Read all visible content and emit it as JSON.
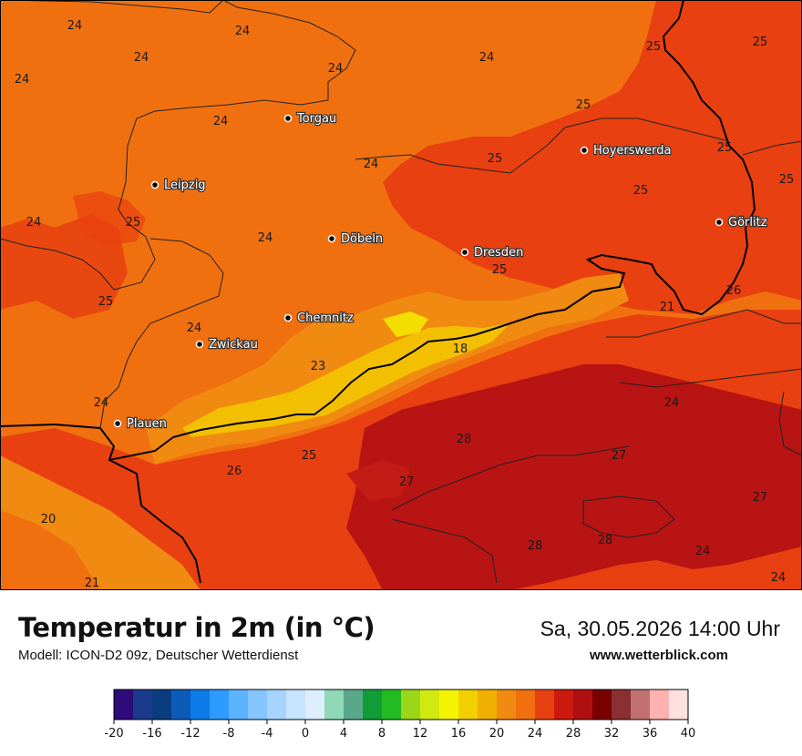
{
  "map": {
    "cities": [
      {
        "name": "Torgau"
      },
      {
        "name": "Leipzig"
      },
      {
        "name": "Döbeln"
      },
      {
        "name": "Dresden"
      },
      {
        "name": "Hoyerswerda"
      },
      {
        "name": "Görlitz"
      },
      {
        "name": "Chemnitz"
      },
      {
        "name": "Zwickau"
      },
      {
        "name": "Plauen"
      }
    ],
    "temperature_labels": [
      "24",
      "24",
      "24",
      "24",
      "24",
      "24",
      "25",
      "25",
      "24",
      "25",
      "24",
      "25",
      "25",
      "24",
      "25",
      "25",
      "25",
      "25",
      "24",
      "25",
      "26",
      "21",
      "24",
      "24",
      "18",
      "23",
      "24",
      "28",
      "27",
      "25",
      "26",
      "27",
      "27",
      "20",
      "28",
      "28",
      "24",
      "21",
      "24"
    ]
  },
  "footer": {
    "title": "Temperatur in 2m (in °C)",
    "subtitle": "Modell: ICON-D2 09z, Deutscher Wetterdienst",
    "datetime": "Sa, 30.05.2026 14:00 Uhr",
    "website": "www.wetterblick.com"
  },
  "legend": {
    "ticks": [
      "-20",
      "-16",
      "-12",
      "-8",
      "-4",
      "0",
      "4",
      "8",
      "12",
      "16",
      "20",
      "24",
      "28",
      "32",
      "36",
      "40"
    ],
    "colors": [
      "#2e0a7a",
      "#1a3a8c",
      "#0a3d80",
      "#0a5cb8",
      "#0b7be8",
      "#2d9bff",
      "#5cb3ff",
      "#86c5ff",
      "#a6d4ff",
      "#c6e3ff",
      "#ddeeff",
      "#8fd8b8",
      "#5aa88a",
      "#109d38",
      "#22bb22",
      "#9bd61a",
      "#d0ea10",
      "#f4f400",
      "#f2d000",
      "#f0b000",
      "#f08a10",
      "#f07010",
      "#e84010",
      "#cc1a10",
      "#b01010",
      "#7a0000",
      "#8a3030",
      "#c07070",
      "#ffb0b0",
      "#ffe0e0"
    ]
  },
  "colors": {
    "field_base": "#f07010",
    "field_warm": "#e84010",
    "field_hot": "#b81414",
    "field_cool": "#f08a10",
    "field_coolest": "#f2c000",
    "border": "#000000",
    "admin_border": "#222222"
  }
}
